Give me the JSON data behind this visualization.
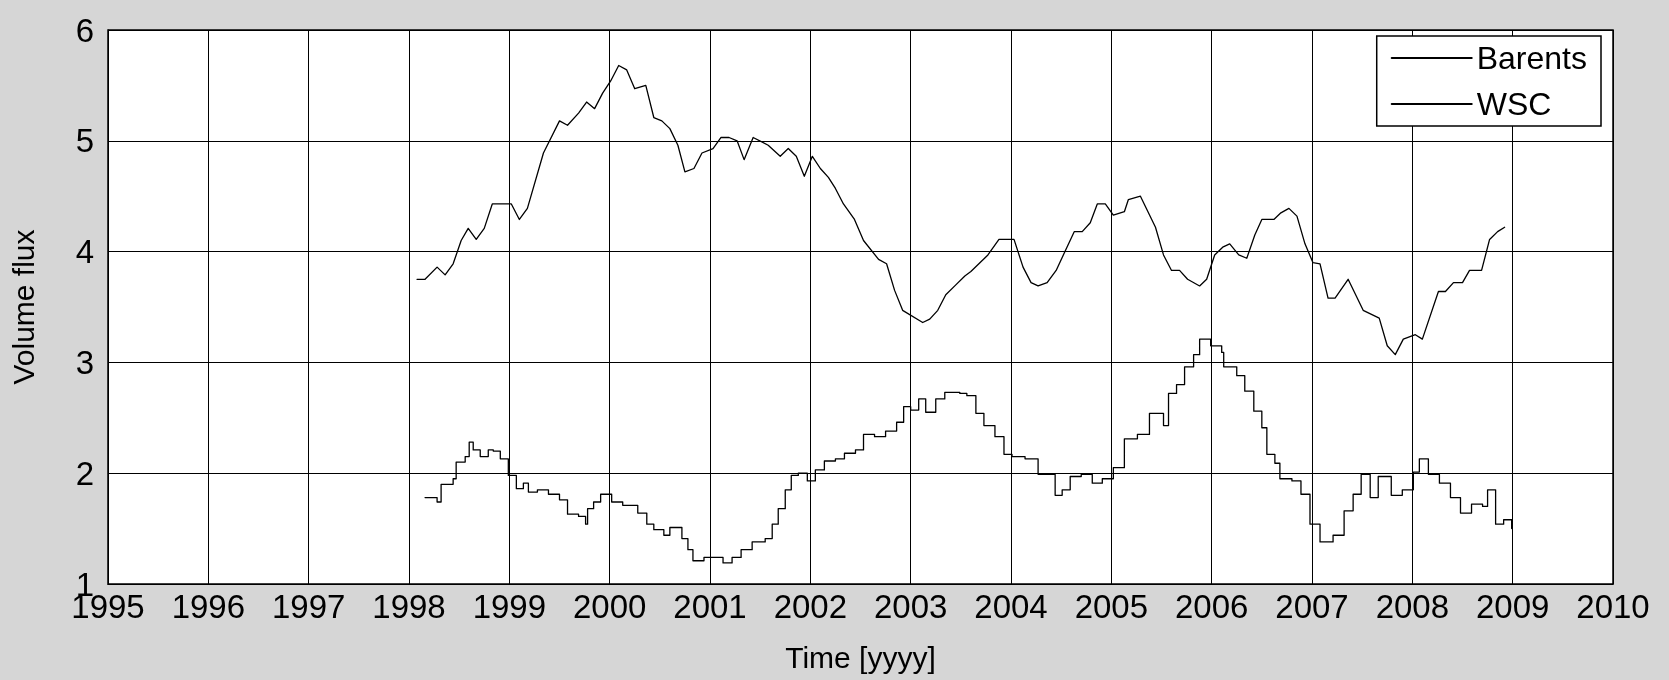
{
  "chart_data": {
    "type": "line",
    "xlabel": "Time [yyyy]",
    "ylabel": "Volume flux",
    "xlim": [
      1995,
      2010
    ],
    "xticks": [
      1995,
      1996,
      1997,
      1998,
      1999,
      2000,
      2001,
      2002,
      2003,
      2004,
      2005,
      2006,
      2007,
      2008,
      2009,
      2010
    ],
    "ylim": [
      1,
      6
    ],
    "yticks": [
      1,
      2,
      3,
      4,
      5,
      6
    ],
    "grid": true,
    "legend": "top right",
    "marker": "none",
    "line_style": "solid",
    "series": [
      {
        "name": "Barents",
        "color": "#000000",
        "x": [
          1998.08,
          1998.16,
          1998.28,
          1998.36,
          1998.44,
          1998.52,
          1998.59,
          1998.67,
          1998.75,
          1998.83,
          1999.02,
          1999.1,
          1999.18,
          1999.34,
          1999.5,
          1999.58,
          1999.69,
          1999.77,
          1999.85,
          1999.93,
          2000.01,
          2000.09,
          2000.17,
          2000.25,
          2000.36,
          2000.44,
          2000.52,
          2000.6,
          2000.68,
          2000.75,
          2000.84,
          2000.92,
          2001.03,
          2001.11,
          2001.19,
          2001.27,
          2001.34,
          2001.43,
          2001.58,
          2001.7,
          2001.78,
          2001.86,
          2001.94,
          2002.02,
          2002.1,
          2002.18,
          2002.25,
          2002.33,
          2002.44,
          2002.53,
          2002.68,
          2002.76,
          2002.84,
          2002.92,
          2003.12,
          2003.19,
          2003.27,
          2003.35,
          2003.45,
          2003.54,
          2003.6,
          2003.77,
          2003.88,
          2004.03,
          2004.12,
          2004.2,
          2004.27,
          2004.36,
          2004.45,
          2004.63,
          2004.71,
          2004.79,
          2004.86,
          2004.94,
          2005.02,
          2005.13,
          2005.17,
          2005.29,
          2005.44,
          2005.52,
          2005.6,
          2005.68,
          2005.76,
          2005.88,
          2005.95,
          2006.03,
          2006.11,
          2006.18,
          2006.27,
          2006.35,
          2006.43,
          2006.5,
          2006.62,
          2006.69,
          2006.77,
          2006.85,
          2006.93,
          2007.01,
          2007.08,
          2007.16,
          2007.23,
          2007.36,
          2007.51,
          2007.67,
          2007.75,
          2007.83,
          2007.91,
          2008.03,
          2008.1,
          2008.26,
          2008.33,
          2008.41,
          2008.5,
          2008.57,
          2008.69,
          2008.77,
          2008.85,
          2008.92
        ],
        "values": [
          3.75,
          3.75,
          3.86,
          3.79,
          3.89,
          4.1,
          4.21,
          4.11,
          4.21,
          4.43,
          4.43,
          4.29,
          4.39,
          4.89,
          5.18,
          5.14,
          5.25,
          5.35,
          5.29,
          5.43,
          5.54,
          5.68,
          5.64,
          5.47,
          5.5,
          5.21,
          5.18,
          5.11,
          4.96,
          4.72,
          4.75,
          4.89,
          4.93,
          5.03,
          5.03,
          5.0,
          4.83,
          5.03,
          4.96,
          4.86,
          4.93,
          4.86,
          4.68,
          4.86,
          4.75,
          4.67,
          4.57,
          4.43,
          4.29,
          4.1,
          3.93,
          3.89,
          3.65,
          3.47,
          3.36,
          3.39,
          3.47,
          3.61,
          3.7,
          3.78,
          3.82,
          3.97,
          4.11,
          4.11,
          3.86,
          3.72,
          3.69,
          3.72,
          3.83,
          4.18,
          4.18,
          4.26,
          4.43,
          4.43,
          4.33,
          4.36,
          4.47,
          4.5,
          4.22,
          3.97,
          3.83,
          3.83,
          3.75,
          3.69,
          3.75,
          3.97,
          4.04,
          4.07,
          3.97,
          3.94,
          4.15,
          4.29,
          4.29,
          4.35,
          4.39,
          4.32,
          4.07,
          3.9,
          3.89,
          3.58,
          3.58,
          3.75,
          3.47,
          3.4,
          3.15,
          3.07,
          3.21,
          3.25,
          3.21,
          3.64,
          3.64,
          3.72,
          3.72,
          3.83,
          3.83,
          4.11,
          4.18,
          4.22
        ]
      },
      {
        "name": "WSC",
        "color": "#000000",
        "type": "step",
        "x": [
          1998.16,
          1998.28,
          1998.32,
          1998.44,
          1998.47,
          1998.56,
          1998.6,
          1998.64,
          1998.71,
          1998.79,
          1998.84,
          1998.91,
          1998.99,
          1999.07,
          1999.14,
          1999.19,
          1999.28,
          1999.39,
          1999.5,
          1999.58,
          1999.69,
          1999.76,
          1999.78,
          1999.84,
          1999.91,
          2000.02,
          2000.13,
          2000.28,
          2000.37,
          2000.44,
          2000.54,
          2000.6,
          2000.72,
          2000.78,
          2000.83,
          2000.94,
          2001.03,
          2001.13,
          2001.22,
          2001.31,
          2001.42,
          2001.55,
          2001.62,
          2001.68,
          2001.75,
          2001.81,
          2001.88,
          2001.97,
          2002.05,
          2002.14,
          2002.25,
          2002.34,
          2002.45,
          2002.53,
          2002.64,
          2002.75,
          2002.86,
          2002.93,
          2003.0,
          2003.08,
          2003.15,
          2003.25,
          2003.34,
          2003.49,
          2003.56,
          2003.65,
          2003.73,
          2003.84,
          2003.93,
          2004.01,
          2004.14,
          2004.27,
          2004.44,
          2004.51,
          2004.59,
          2004.7,
          2004.81,
          2004.91,
          2005.02,
          2005.13,
          2005.26,
          2005.38,
          2005.52,
          2005.57,
          2005.65,
          2005.73,
          2005.82,
          2005.88,
          2005.99,
          2006.1,
          2006.12,
          2006.25,
          2006.33,
          2006.42,
          2006.5,
          2006.55,
          2006.63,
          2006.68,
          2006.8,
          2006.89,
          2006.98,
          2007.08,
          2007.21,
          2007.32,
          2007.41,
          2007.49,
          2007.58,
          2007.66,
          2007.79,
          2007.9,
          2008.01,
          2008.07,
          2008.16,
          2008.27,
          2008.38,
          2008.48,
          2008.59,
          2008.7,
          2008.75,
          2008.83,
          2008.91,
          2008.99
        ],
        "values": [
          1.78,
          1.74,
          1.9,
          1.95,
          2.1,
          2.15,
          2.28,
          2.21,
          2.15,
          2.21,
          2.2,
          2.13,
          1.98,
          1.86,
          1.91,
          1.83,
          1.85,
          1.81,
          1.76,
          1.63,
          1.61,
          1.54,
          1.68,
          1.74,
          1.81,
          1.74,
          1.71,
          1.64,
          1.54,
          1.49,
          1.44,
          1.51,
          1.41,
          1.31,
          1.21,
          1.24,
          1.24,
          1.19,
          1.24,
          1.31,
          1.38,
          1.41,
          1.54,
          1.68,
          1.85,
          1.98,
          2.0,
          1.93,
          2.03,
          2.11,
          2.13,
          2.18,
          2.21,
          2.35,
          2.33,
          2.38,
          2.46,
          2.6,
          2.57,
          2.67,
          2.55,
          2.67,
          2.73,
          2.72,
          2.7,
          2.54,
          2.43,
          2.33,
          2.17,
          2.15,
          2.13,
          1.99,
          1.8,
          1.85,
          1.97,
          1.99,
          1.91,
          1.95,
          2.05,
          2.31,
          2.35,
          2.54,
          2.43,
          2.72,
          2.8,
          2.96,
          3.07,
          3.21,
          3.15,
          3.09,
          2.96,
          2.88,
          2.74,
          2.56,
          2.41,
          2.17,
          2.09,
          1.95,
          1.93,
          1.81,
          1.54,
          1.38,
          1.44,
          1.66,
          1.81,
          1.99,
          1.78,
          1.97,
          1.8,
          1.85,
          2.01,
          2.13,
          1.99,
          1.91,
          1.78,
          1.64,
          1.72,
          1.7,
          1.85,
          1.54,
          1.58,
          1.5
        ]
      }
    ]
  }
}
